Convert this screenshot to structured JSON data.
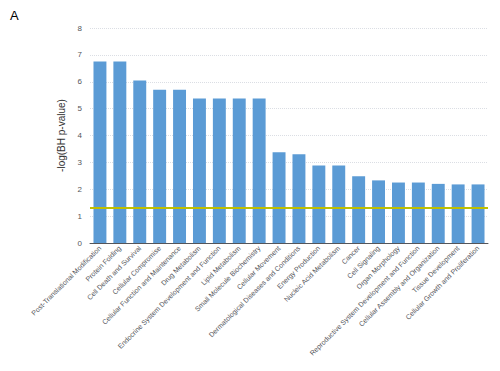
{
  "chart_data": {
    "type": "bar",
    "title": "A",
    "categories": [
      "Post-Translational Modification",
      "Protein Folding",
      "Cell Death and Survival",
      "Cellular Compromise",
      "Cellular Function and Maintenance",
      "Drug Metabolism",
      "Endocrine System Development and Function",
      "Lipid Metabolism",
      "Small Molecule Biochemistry",
      "Cellular Movement",
      "Dermatological Diseases and Conditions",
      "Energy Production",
      "Nucleic Acid Metabolism",
      "Cancer",
      "Cell Signaling",
      "Organ Morphology",
      "Reproductive System Development and Function",
      "Cellular Assembly and Organization",
      "Tissue Development",
      "Cellular Growth and Proliferation"
    ],
    "values": [
      6.75,
      6.75,
      6.05,
      5.7,
      5.7,
      5.38,
      5.38,
      5.38,
      5.38,
      3.38,
      3.3,
      2.88,
      2.88,
      2.48,
      2.33,
      2.25,
      2.25,
      2.2,
      2.18,
      2.18
    ],
    "color": "#5B9BD5",
    "ylabel": "-log(BH p-value)",
    "ylim": [
      0,
      8
    ],
    "yticks": [
      0,
      1,
      2,
      3,
      4,
      5,
      6,
      7,
      8
    ],
    "grid": true,
    "reference_line": {
      "value": 1.3,
      "color": "#BFBF00"
    }
  }
}
